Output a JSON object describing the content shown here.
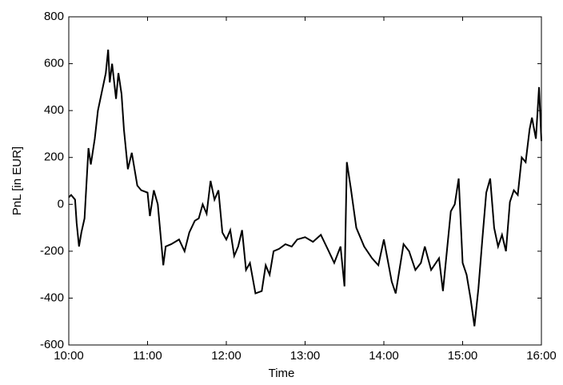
{
  "chart_data": {
    "type": "line",
    "xlabel": "Time",
    "ylabel": "PnL [in EUR]",
    "xlim": [
      10,
      16
    ],
    "xticks": [
      {
        "value": 10,
        "label": "10:00"
      },
      {
        "value": 11,
        "label": "11:00"
      },
      {
        "value": 12,
        "label": "12:00"
      },
      {
        "value": 13,
        "label": "13:00"
      },
      {
        "value": 14,
        "label": "14:00"
      },
      {
        "value": 15,
        "label": "15:00"
      },
      {
        "value": 16,
        "label": "16:00"
      }
    ],
    "ylim": [
      -600,
      800
    ],
    "yticks": [
      -600,
      -400,
      -200,
      0,
      200,
      400,
      600,
      800
    ],
    "grid": false,
    "series": [
      {
        "color": "#000000",
        "x": [
          10,
          10.03,
          10.08,
          10.1,
          10.13,
          10.16,
          10.2,
          10.25,
          10.28,
          10.33,
          10.37,
          10.42,
          10.47,
          10.5,
          10.52,
          10.55,
          10.6,
          10.63,
          10.67,
          10.7,
          10.75,
          10.8,
          10.87,
          10.92,
          11.0,
          11.03,
          11.08,
          11.13,
          11.2,
          11.23,
          11.3,
          11.4,
          11.47,
          11.53,
          11.6,
          11.65,
          11.7,
          11.75,
          11.8,
          11.85,
          11.9,
          11.95,
          12.0,
          12.05,
          12.1,
          12.15,
          12.2,
          12.25,
          12.3,
          12.37,
          12.45,
          12.5,
          12.55,
          12.6,
          12.67,
          12.75,
          12.83,
          12.9,
          13.0,
          13.1,
          13.2,
          13.3,
          13.37,
          13.45,
          13.5,
          13.53,
          13.58,
          13.65,
          13.75,
          13.85,
          13.93,
          14.0,
          14.1,
          14.15,
          14.25,
          14.32,
          14.4,
          14.47,
          14.52,
          14.6,
          14.7,
          14.75,
          14.85,
          14.9,
          14.95,
          15.0,
          15.05,
          15.1,
          15.15,
          15.2,
          15.25,
          15.3,
          15.35,
          15.4,
          15.45,
          15.5,
          15.55,
          15.6,
          15.65,
          15.7,
          15.75,
          15.8,
          15.85,
          15.88,
          15.93,
          15.97,
          16.0
        ],
        "values": [
          30,
          40,
          20,
          -80,
          -180,
          -120,
          -60,
          240,
          170,
          280,
          400,
          480,
          560,
          660,
          520,
          600,
          450,
          560,
          470,
          320,
          150,
          220,
          80,
          60,
          50,
          -50,
          60,
          0,
          -260,
          -180,
          -170,
          -150,
          -200,
          -120,
          -70,
          -60,
          0,
          -40,
          100,
          20,
          60,
          -120,
          -150,
          -110,
          -220,
          -180,
          -110,
          -280,
          -250,
          -380,
          -370,
          -260,
          -300,
          -200,
          -190,
          -170,
          -180,
          -150,
          -140,
          -160,
          -130,
          -200,
          -250,
          -180,
          -350,
          180,
          70,
          -100,
          -180,
          -230,
          -260,
          -150,
          -330,
          -380,
          -170,
          -200,
          -280,
          -250,
          -180,
          -280,
          -230,
          -370,
          -30,
          0,
          110,
          -250,
          -300,
          -400,
          -520,
          -360,
          -150,
          50,
          110,
          -100,
          -180,
          -130,
          -200,
          10,
          60,
          40,
          200,
          180,
          320,
          370,
          280,
          500,
          270
        ]
      }
    ]
  }
}
